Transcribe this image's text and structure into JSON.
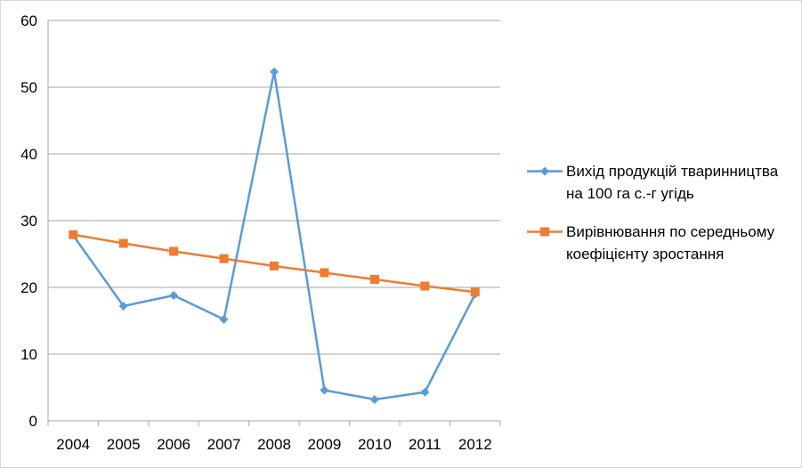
{
  "chart_data": {
    "type": "line",
    "categories": [
      "2004",
      "2005",
      "2006",
      "2007",
      "2008",
      "2009",
      "2010",
      "2011",
      "2012"
    ],
    "series": [
      {
        "name": "Вихід продукцій тваринництва на 100 га с.-г угідь",
        "values": [
          27.8,
          17.2,
          18.8,
          15.2,
          52.3,
          4.6,
          3.2,
          4.3,
          19.0
        ],
        "color": "#5b9bd5",
        "marker": "diamond"
      },
      {
        "name": "Вирівнювання по середньому коефіцієнту зростання",
        "values": [
          27.9,
          26.6,
          25.4,
          24.3,
          23.2,
          22.2,
          21.2,
          20.2,
          19.3
        ],
        "color": "#ed7d31",
        "marker": "square"
      }
    ],
    "title": "",
    "xlabel": "",
    "ylabel": "",
    "ylim": [
      0,
      60
    ],
    "yticks": [
      "0",
      "10",
      "20",
      "30",
      "40",
      "50",
      "60"
    ],
    "grid": true,
    "legend_position": "right"
  }
}
